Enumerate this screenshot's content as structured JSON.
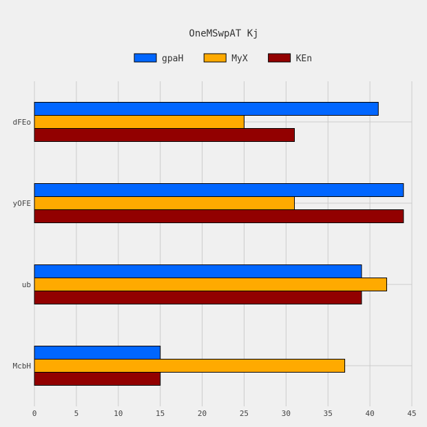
{
  "chart_data": {
    "type": "bar",
    "orientation": "horizontal",
    "title": "OneMSwpAT Kj",
    "xlabel": "",
    "ylabel": "",
    "categories": [
      "dFEo",
      "yOFE",
      "ub",
      "McbH"
    ],
    "series": [
      {
        "name": "gpaH",
        "color": "#0066ff",
        "values": [
          41,
          44,
          39,
          15
        ]
      },
      {
        "name": "MyX",
        "color": "#ffaa00",
        "values": [
          25,
          31,
          42,
          37
        ]
      },
      {
        "name": "KEn",
        "color": "#920000",
        "values": [
          31,
          44,
          39,
          15
        ]
      }
    ],
    "xlim": [
      0,
      45
    ],
    "xticks": [
      "0",
      "5",
      "10",
      "15",
      "20",
      "25",
      "30",
      "35",
      "40",
      "45"
    ],
    "grid": true,
    "legend_position": "top"
  }
}
